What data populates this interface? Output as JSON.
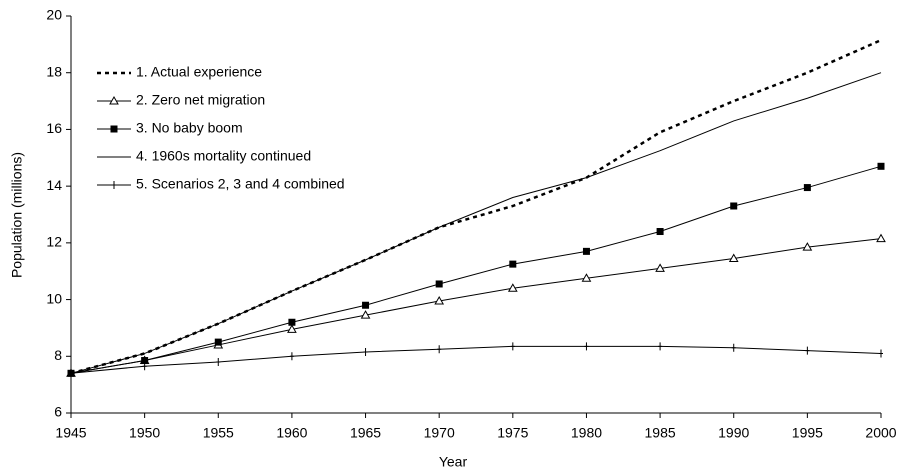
{
  "chart_data": {
    "type": "line",
    "x_label": "Year",
    "y_label": "Population (millions)",
    "x": [
      1945,
      1950,
      1955,
      1960,
      1965,
      1970,
      1975,
      1980,
      1985,
      1990,
      1995,
      2000
    ],
    "xlim": [
      1945,
      2000
    ],
    "xticks": [
      1945,
      1950,
      1955,
      1960,
      1965,
      1970,
      1975,
      1980,
      1985,
      1990,
      1995,
      2000
    ],
    "ylim": [
      6,
      20
    ],
    "yticks": [
      6,
      8,
      10,
      12,
      14,
      16,
      18,
      20
    ],
    "grid": false,
    "legend": "upper-left",
    "series": [
      {
        "name": "1. Actual experience",
        "color": "#000000",
        "dash": true,
        "marker": null,
        "values": [
          7.4,
          8.1,
          9.15,
          10.3,
          11.4,
          12.55,
          13.3,
          14.3,
          15.9,
          17.0,
          18.0,
          19.15
        ]
      },
      {
        "name": "2. Zero net migration",
        "color": "#000000",
        "dash": false,
        "marker": "triangle",
        "values": [
          7.4,
          7.85,
          8.4,
          8.95,
          9.45,
          9.95,
          10.4,
          10.75,
          11.1,
          11.45,
          11.85,
          12.15
        ]
      },
      {
        "name": "3. No baby boom",
        "color": "#000000",
        "dash": false,
        "marker": "square",
        "values": [
          7.4,
          7.85,
          8.5,
          9.2,
          9.8,
          10.55,
          11.25,
          11.7,
          12.4,
          13.3,
          13.95,
          14.7
        ]
      },
      {
        "name": "4. 1960s mortality continued",
        "color": "#000000",
        "dash": false,
        "marker": null,
        "values": [
          7.4,
          8.1,
          9.15,
          10.3,
          11.4,
          12.55,
          13.6,
          14.3,
          15.25,
          16.3,
          17.1,
          18.0
        ]
      },
      {
        "name": "5. Scenarios 2, 3 and 4 combined",
        "color": "#000000",
        "dash": false,
        "marker": "plus",
        "values": [
          7.4,
          7.65,
          7.8,
          8.0,
          8.15,
          8.25,
          8.35,
          8.35,
          8.35,
          8.3,
          8.2,
          8.1
        ]
      }
    ]
  }
}
